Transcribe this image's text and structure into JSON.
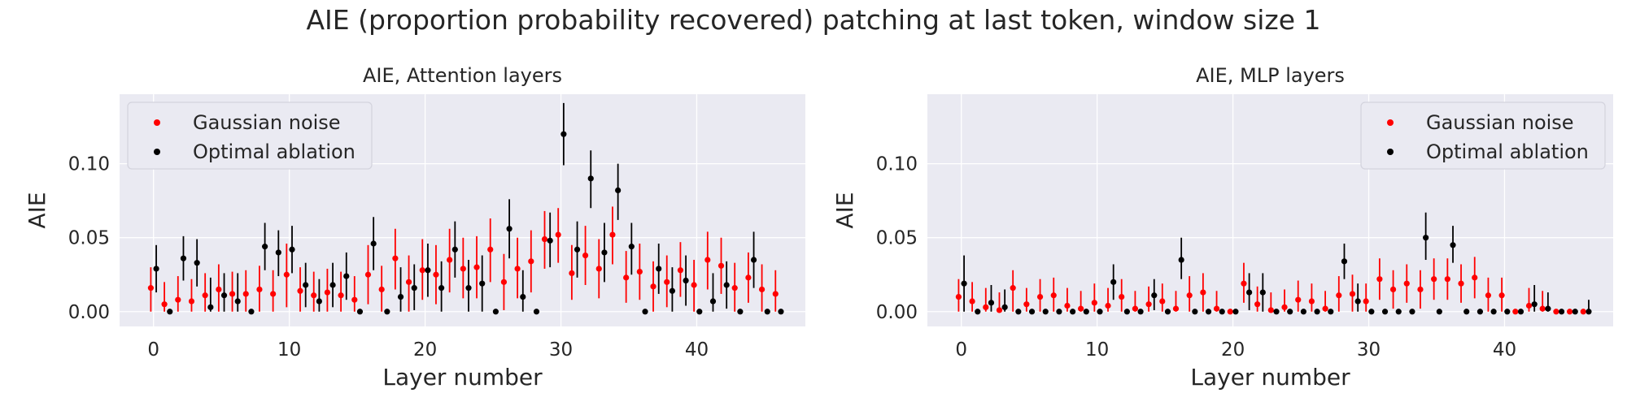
{
  "figure": {
    "suptitle": "AIE (proportion probability recovered) patching at last token, window size 1"
  },
  "colors": {
    "panel_bg": "#EAEAF2",
    "grid": "#FFFFFF",
    "gaussian": "#FF0000",
    "optimal": "#000000"
  },
  "chart_data": [
    {
      "type": "scatter",
      "title": "AIE, Attention layers",
      "xlabel": "Layer number",
      "ylabel": "AIE",
      "xlim": [
        -2.5,
        48
      ],
      "ylim": [
        -0.01,
        0.147
      ],
      "xticks": [
        0,
        10,
        20,
        30,
        40
      ],
      "yticks": [
        0.0,
        0.05,
        0.1
      ],
      "ytick_labels": [
        "0.00",
        "0.05",
        "0.10"
      ],
      "grid": true,
      "legend": {
        "placement": "upper-left",
        "entries": [
          "Gaussian noise",
          "Optimal ablation"
        ]
      },
      "series": [
        {
          "name": "Gaussian noise",
          "color": "#FF0000",
          "x": [
            -0.2,
            0.8,
            1.8,
            2.8,
            3.8,
            4.8,
            5.8,
            6.8,
            7.8,
            8.8,
            9.8,
            10.8,
            11.8,
            12.8,
            13.8,
            14.8,
            15.8,
            16.8,
            17.8,
            18.8,
            19.8,
            20.8,
            21.8,
            22.8,
            23.8,
            24.8,
            25.8,
            26.8,
            27.8,
            28.8,
            29.8,
            30.8,
            31.8,
            32.8,
            33.8,
            34.8,
            35.8,
            36.8,
            37.8,
            38.8,
            39.8,
            40.8,
            41.8,
            42.8,
            43.8,
            44.8,
            45.8
          ],
          "y": [
            0.016,
            0.005,
            0.008,
            0.007,
            0.011,
            0.015,
            0.012,
            0.012,
            0.015,
            0.012,
            0.025,
            0.014,
            0.011,
            0.013,
            0.011,
            0.008,
            0.025,
            0.015,
            0.036,
            0.02,
            0.028,
            0.025,
            0.035,
            0.029,
            0.03,
            0.042,
            0.02,
            0.029,
            0.034,
            0.049,
            0.052,
            0.026,
            0.038,
            0.029,
            0.052,
            0.023,
            0.027,
            0.017,
            0.02,
            0.028,
            0.018,
            0.035,
            0.031,
            0.016,
            0.023,
            0.015,
            0.012
          ],
          "err_low": [
            0.0,
            0.0,
            0.0,
            0.0,
            0.0,
            0.0,
            0.0,
            0.0,
            0.0,
            0.0,
            0.003,
            0.0,
            0.0,
            0.0,
            0.0,
            0.0,
            0.005,
            0.0,
            0.015,
            0.0,
            0.008,
            0.005,
            0.013,
            0.009,
            0.009,
            0.02,
            0.001,
            0.009,
            0.013,
            0.029,
            0.033,
            0.008,
            0.018,
            0.009,
            0.032,
            0.006,
            0.008,
            0.0,
            0.003,
            0.01,
            0.0,
            0.015,
            0.012,
            0.0,
            0.006,
            0.0,
            0.0
          ],
          "err_high": [
            0.03,
            0.02,
            0.024,
            0.022,
            0.026,
            0.032,
            0.027,
            0.028,
            0.031,
            0.028,
            0.046,
            0.03,
            0.027,
            0.029,
            0.027,
            0.024,
            0.045,
            0.031,
            0.056,
            0.038,
            0.049,
            0.045,
            0.056,
            0.05,
            0.051,
            0.063,
            0.039,
            0.05,
            0.055,
            0.068,
            0.07,
            0.045,
            0.058,
            0.049,
            0.071,
            0.041,
            0.046,
            0.034,
            0.038,
            0.047,
            0.035,
            0.054,
            0.05,
            0.033,
            0.04,
            0.032,
            0.028
          ]
        },
        {
          "name": "Optimal ablation",
          "color": "#000000",
          "x": [
            0.2,
            1.2,
            2.2,
            3.2,
            4.2,
            5.2,
            6.2,
            7.2,
            8.2,
            9.2,
            10.2,
            11.2,
            12.2,
            13.2,
            14.2,
            15.2,
            16.2,
            17.2,
            18.2,
            19.2,
            20.2,
            21.2,
            22.2,
            23.2,
            24.2,
            25.2,
            26.2,
            27.2,
            28.2,
            29.2,
            30.2,
            31.2,
            32.2,
            33.2,
            34.2,
            35.2,
            36.2,
            37.2,
            38.2,
            39.2,
            40.2,
            41.2,
            42.2,
            43.2,
            44.2,
            45.2,
            46.2
          ],
          "y": [
            0.029,
            0.0,
            0.036,
            0.033,
            0.003,
            0.011,
            0.007,
            0.0,
            0.044,
            0.04,
            0.042,
            0.018,
            0.007,
            0.018,
            0.024,
            0.0,
            0.046,
            0.0,
            0.01,
            0.016,
            0.028,
            0.016,
            0.042,
            0.016,
            0.019,
            0.0,
            0.056,
            0.01,
            0.0,
            0.048,
            0.12,
            0.042,
            0.09,
            0.04,
            0.082,
            0.044,
            0.0,
            0.029,
            0.014,
            0.021,
            0.0,
            0.007,
            0.018,
            0.0,
            0.035,
            0.0,
            0.0
          ],
          "err_low": [
            0.013,
            0.0,
            0.021,
            0.017,
            0.0,
            0.0,
            0.0,
            0.0,
            0.028,
            0.024,
            0.026,
            0.003,
            0.0,
            0.003,
            0.008,
            0.0,
            0.028,
            0.0,
            0.0,
            0.001,
            0.01,
            0.0,
            0.023,
            0.0,
            0.0,
            0.0,
            0.036,
            0.0,
            0.0,
            0.03,
            0.099,
            0.023,
            0.07,
            0.02,
            0.062,
            0.025,
            0.0,
            0.012,
            0.0,
            0.004,
            0.0,
            0.0,
            0.002,
            0.0,
            0.016,
            0.0,
            0.0
          ],
          "err_high": [
            0.045,
            0.0,
            0.051,
            0.049,
            0.023,
            0.026,
            0.026,
            0.0,
            0.06,
            0.055,
            0.058,
            0.033,
            0.022,
            0.033,
            0.04,
            0.0,
            0.064,
            0.0,
            0.03,
            0.032,
            0.046,
            0.034,
            0.061,
            0.035,
            0.038,
            0.0,
            0.076,
            0.028,
            0.0,
            0.067,
            0.141,
            0.061,
            0.109,
            0.06,
            0.1,
            0.06,
            0.0,
            0.046,
            0.03,
            0.038,
            0.0,
            0.026,
            0.034,
            0.0,
            0.054,
            0.0,
            0.0
          ]
        }
      ]
    },
    {
      "type": "scatter",
      "title": "AIE, MLP layers",
      "xlabel": "Layer number",
      "ylabel": "AIE",
      "xlim": [
        -2.5,
        48
      ],
      "ylim": [
        -0.01,
        0.147
      ],
      "xticks": [
        0,
        10,
        20,
        30,
        40
      ],
      "yticks": [
        0.0,
        0.05,
        0.1
      ],
      "ytick_labels": [
        "0.00",
        "0.05",
        "0.10"
      ],
      "grid": true,
      "legend": {
        "placement": "upper-right",
        "entries": [
          "Gaussian noise",
          "Optimal ablation"
        ]
      },
      "series": [
        {
          "name": "Gaussian noise",
          "color": "#FF0000",
          "x": [
            -0.2,
            0.8,
            1.8,
            2.8,
            3.8,
            4.8,
            5.8,
            6.8,
            7.8,
            8.8,
            9.8,
            10.8,
            11.8,
            12.8,
            13.8,
            14.8,
            15.8,
            16.8,
            17.8,
            18.8,
            19.8,
            20.8,
            21.8,
            22.8,
            23.8,
            24.8,
            25.8,
            26.8,
            27.8,
            28.8,
            29.8,
            30.8,
            31.8,
            32.8,
            33.8,
            34.8,
            35.8,
            36.8,
            37.8,
            38.8,
            39.8,
            40.8,
            41.8,
            42.8,
            43.8,
            44.8,
            45.8
          ],
          "y": [
            0.01,
            0.007,
            0.003,
            0.001,
            0.016,
            0.005,
            0.01,
            0.011,
            0.004,
            0.002,
            0.006,
            0.004,
            0.01,
            0.002,
            0.005,
            0.007,
            0.002,
            0.011,
            0.013,
            0.002,
            0.0,
            0.019,
            0.005,
            0.001,
            0.003,
            0.008,
            0.007,
            0.002,
            0.011,
            0.012,
            0.007,
            0.022,
            0.015,
            0.019,
            0.015,
            0.022,
            0.022,
            0.019,
            0.023,
            0.011,
            0.011,
            0.0,
            0.004,
            0.002,
            0.0,
            0.0,
            0.0
          ],
          "err_low": [
            0.0,
            0.0,
            0.0,
            0.0,
            0.0,
            0.0,
            0.0,
            0.0,
            0.0,
            0.0,
            0.0,
            0.0,
            0.0,
            0.0,
            0.0,
            0.0,
            0.0,
            0.0,
            0.0,
            0.0,
            0.0,
            0.006,
            0.0,
            0.0,
            0.0,
            0.0,
            0.0,
            0.0,
            0.0,
            0.0,
            0.0,
            0.008,
            0.002,
            0.006,
            0.002,
            0.008,
            0.008,
            0.006,
            0.009,
            0.0,
            0.0,
            0.0,
            0.0,
            0.0,
            0.0,
            0.0,
            0.0
          ],
          "err_high": [
            0.022,
            0.02,
            0.016,
            0.013,
            0.028,
            0.016,
            0.022,
            0.023,
            0.016,
            0.014,
            0.019,
            0.016,
            0.022,
            0.014,
            0.017,
            0.019,
            0.014,
            0.024,
            0.026,
            0.014,
            0.0,
            0.033,
            0.017,
            0.013,
            0.015,
            0.021,
            0.019,
            0.014,
            0.024,
            0.025,
            0.019,
            0.036,
            0.028,
            0.032,
            0.028,
            0.036,
            0.036,
            0.032,
            0.037,
            0.023,
            0.023,
            0.0,
            0.016,
            0.014,
            0.0,
            0.0,
            0.0
          ]
        },
        {
          "name": "Optimal ablation",
          "color": "#000000",
          "x": [
            0.2,
            1.2,
            2.2,
            3.2,
            4.2,
            5.2,
            6.2,
            7.2,
            8.2,
            9.2,
            10.2,
            11.2,
            12.2,
            13.2,
            14.2,
            15.2,
            16.2,
            17.2,
            18.2,
            19.2,
            20.2,
            21.2,
            22.2,
            23.2,
            24.2,
            25.2,
            26.2,
            27.2,
            28.2,
            29.2,
            30.2,
            31.2,
            32.2,
            33.2,
            34.2,
            35.2,
            36.2,
            37.2,
            38.2,
            39.2,
            40.2,
            41.2,
            42.2,
            43.2,
            44.2,
            45.2,
            46.2
          ],
          "y": [
            0.019,
            0.0,
            0.006,
            0.003,
            0.0,
            0.0,
            0.0,
            0.0,
            0.0,
            0.0,
            0.0,
            0.02,
            0.0,
            0.0,
            0.011,
            0.0,
            0.035,
            0.0,
            0.0,
            0.0,
            0.0,
            0.013,
            0.013,
            0.0,
            0.0,
            0.0,
            0.0,
            0.0,
            0.034,
            0.007,
            0.0,
            0.0,
            0.0,
            0.0,
            0.05,
            0.0,
            0.045,
            0.0,
            0.0,
            0.0,
            0.0,
            0.0,
            0.005,
            0.002,
            0.0,
            0.0,
            0.0
          ],
          "err_low": [
            0.0,
            0.0,
            0.0,
            0.0,
            0.0,
            0.0,
            0.0,
            0.0,
            0.0,
            0.0,
            0.0,
            0.008,
            0.0,
            0.0,
            0.001,
            0.0,
            0.022,
            0.0,
            0.0,
            0.0,
            0.0,
            0.001,
            0.0,
            0.0,
            0.0,
            0.0,
            0.0,
            0.0,
            0.022,
            0.0,
            0.0,
            0.0,
            0.0,
            0.0,
            0.035,
            0.0,
            0.033,
            0.0,
            0.0,
            0.0,
            0.0,
            0.0,
            0.0,
            0.0,
            0.0,
            0.0,
            0.0
          ],
          "err_high": [
            0.038,
            0.0,
            0.018,
            0.015,
            0.0,
            0.0,
            0.0,
            0.0,
            0.0,
            0.0,
            0.0,
            0.032,
            0.0,
            0.0,
            0.022,
            0.0,
            0.05,
            0.0,
            0.0,
            0.0,
            0.0,
            0.026,
            0.026,
            0.0,
            0.0,
            0.0,
            0.0,
            0.0,
            0.046,
            0.019,
            0.0,
            0.0,
            0.0,
            0.0,
            0.067,
            0.0,
            0.058,
            0.0,
            0.0,
            0.0,
            0.0,
            0.0,
            0.018,
            0.013,
            0.0,
            0.0,
            0.008
          ]
        }
      ]
    }
  ]
}
